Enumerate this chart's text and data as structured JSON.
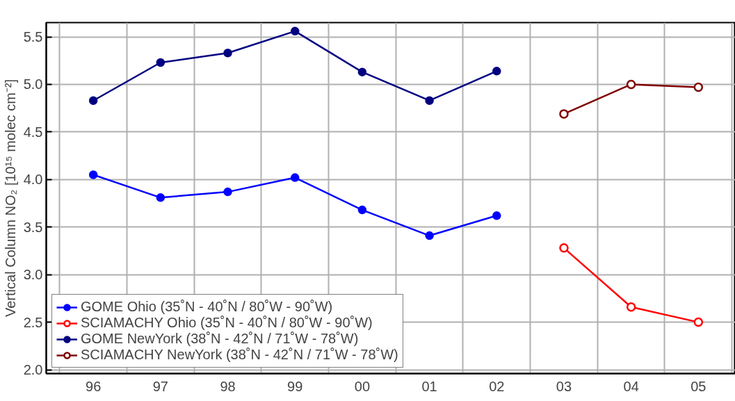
{
  "chart_data": {
    "type": "line",
    "ylabel": "Vertical Column NO₂ [10¹⁵ molec cm⁻²]",
    "categories": [
      "96",
      "97",
      "98",
      "99",
      "00",
      "01",
      "02",
      "03",
      "04",
      "05"
    ],
    "ylim": [
      1.96,
      5.65
    ],
    "yticks": [
      {
        "value": 2.0,
        "label": "2.0"
      },
      2.5,
      {
        "value": 3.0,
        "label": "3.0"
      },
      3.5,
      {
        "value": 4.0,
        "label": "4.0"
      },
      4.5,
      {
        "value": 5.0,
        "label": "5.0"
      },
      5.5
    ],
    "grid": true,
    "legend": "bottom left",
    "line_style": "solid",
    "series": [
      {
        "name": "GOME Ohio (35˚N - 40˚N / 80˚W - 90˚W)",
        "color": "#0000ff",
        "marker": "circle",
        "values": [
          4.05,
          3.81,
          3.87,
          4.02,
          3.68,
          3.41,
          3.62,
          null,
          null,
          null
        ]
      },
      {
        "name": "SCIAMACHY Ohio (35˚N - 40˚N / 80˚W - 90˚W)",
        "color": "#ff0000",
        "marker": "circle_open",
        "values": [
          null,
          null,
          null,
          null,
          null,
          null,
          null,
          3.28,
          2.66,
          2.5
        ]
      },
      {
        "name": "GOME NewYork (38˚N - 42˚N / 71˚W - 78˚W)",
        "color": "#000080",
        "marker": "circle",
        "values": [
          4.83,
          5.23,
          5.33,
          5.56,
          5.13,
          4.83,
          5.14,
          null,
          null,
          null
        ]
      },
      {
        "name": "SCIAMACHY NewYork (38˚N - 42˚N / 71˚W - 78˚W)",
        "color": "#800000",
        "marker": "circle_open",
        "values": [
          null,
          null,
          null,
          null,
          null,
          null,
          null,
          4.69,
          5.0,
          4.97
        ]
      }
    ]
  }
}
